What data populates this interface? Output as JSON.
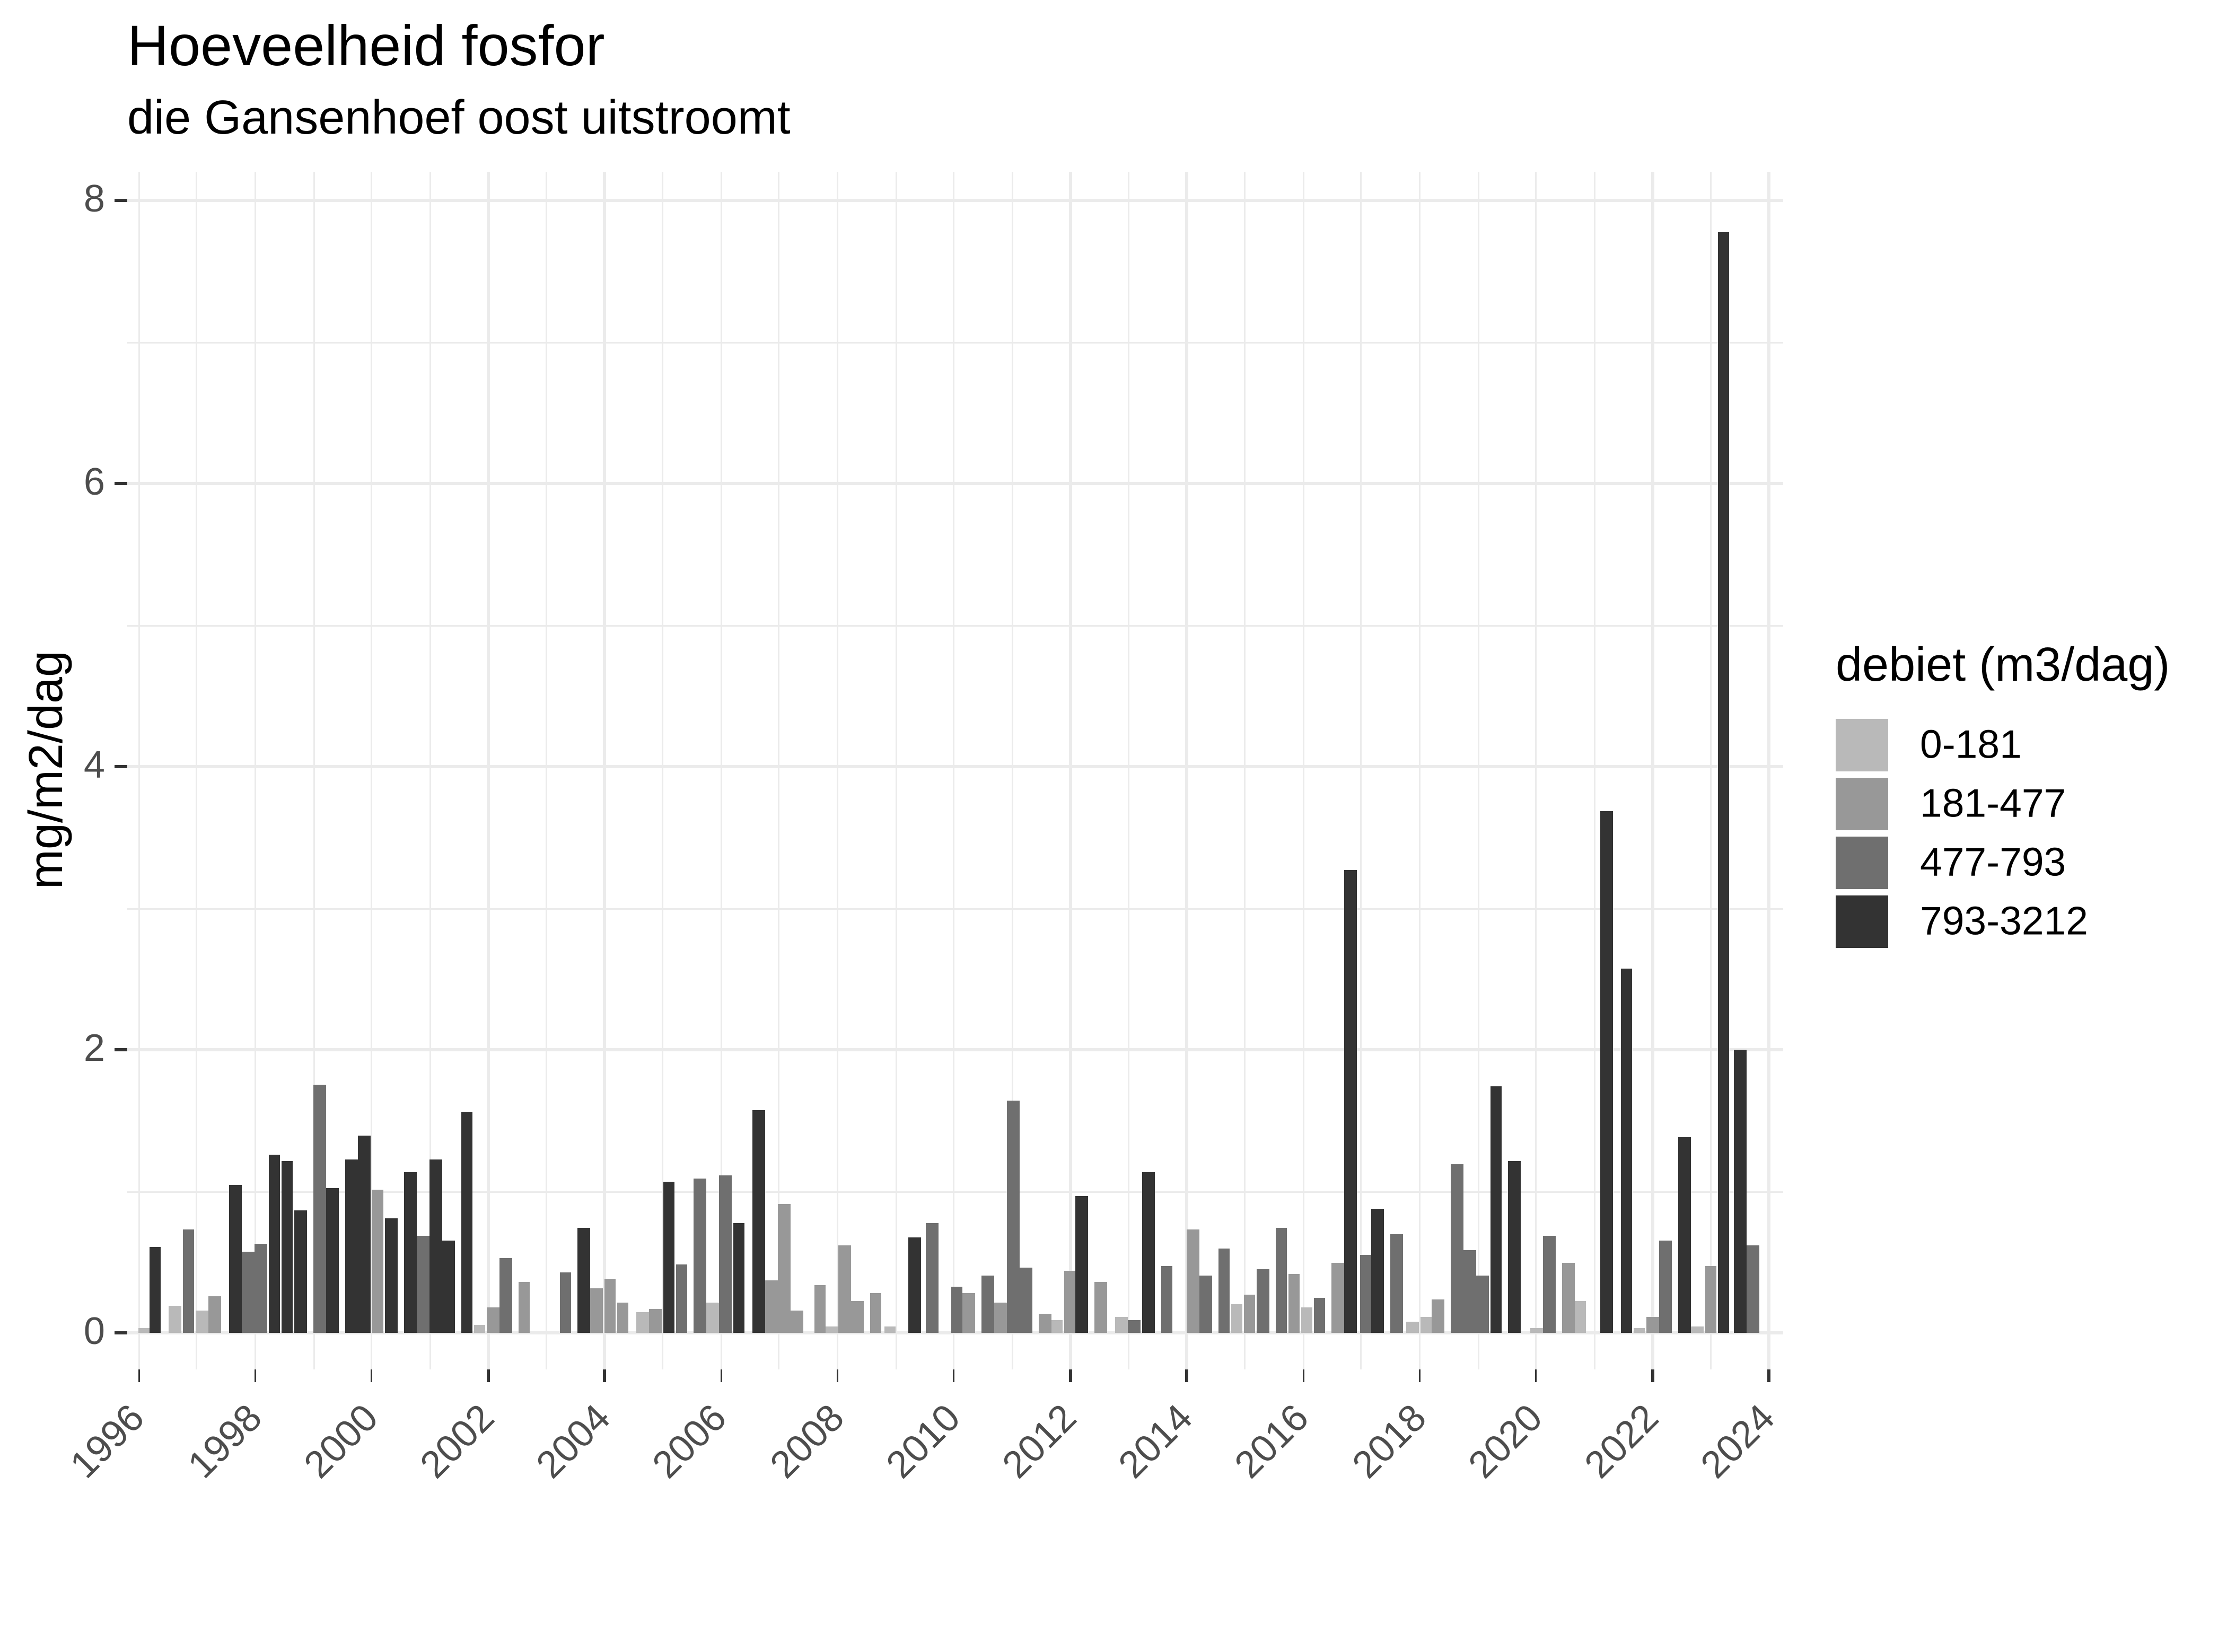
{
  "page": {
    "title": "Hoeveelheid fosfor",
    "subtitle": "die Gansenhoef oost uitstroomt"
  },
  "chart_data": {
    "type": "bar",
    "title": "Hoeveelheid fosfor",
    "subtitle": "die Gansenhoef oost uitstroomt",
    "xlabel": "",
    "ylabel": "mg/m2/dag",
    "ylim": [
      0,
      8.2
    ],
    "xlim": [
      1995.75,
      2024.25
    ],
    "grid": "on",
    "y_major_ticks": [
      0,
      2,
      4,
      6,
      8
    ],
    "y_minor_gridlines": [
      1,
      3,
      5,
      7
    ],
    "x_tick_years": [
      1996,
      1998,
      2000,
      2002,
      2004,
      2006,
      2008,
      2010,
      2012,
      2014,
      2016,
      2018,
      2020,
      2022,
      2024
    ],
    "x_major_gridlines": [
      1996,
      1998,
      2000,
      2002,
      2004,
      2006,
      2008,
      2010,
      2012,
      2014,
      2016,
      2018,
      2020,
      2022,
      2024
    ],
    "x_minor_gridlines": [
      1997,
      1999,
      2001,
      2003,
      2005,
      2007,
      2009,
      2011,
      2013,
      2015,
      2017,
      2019,
      2021,
      2023
    ],
    "legend": {
      "title": "debiet (m3/dag)",
      "position": "right",
      "items": [
        {
          "label": "0-181",
          "color": "#b9b9b9"
        },
        {
          "label": "181-477",
          "color": "#989898"
        },
        {
          "label": "477-793",
          "color": "#6f6f6f"
        },
        {
          "label": "793-3212",
          "color": "#333333"
        }
      ]
    },
    "bar_width_years": 0.21,
    "bars": [
      [
        1996.1,
        0.03,
        0
      ],
      [
        1996.28,
        0.61,
        3
      ],
      [
        1996.62,
        0.19,
        0
      ],
      [
        1996.85,
        0.73,
        2
      ],
      [
        1997.08,
        0.16,
        0
      ],
      [
        1997.3,
        0.26,
        1
      ],
      [
        1997.66,
        1.04,
        3
      ],
      [
        1997.88,
        0.57,
        2
      ],
      [
        1998.1,
        0.63,
        2
      ],
      [
        1998.33,
        1.26,
        3
      ],
      [
        1998.55,
        1.21,
        3
      ],
      [
        1998.77,
        0.87,
        3
      ],
      [
        1999.1,
        1.75,
        2
      ],
      [
        1999.33,
        1.02,
        3
      ],
      [
        1999.66,
        1.22,
        3
      ],
      [
        1999.88,
        1.39,
        3
      ],
      [
        2000.1,
        1.01,
        1
      ],
      [
        2000.33,
        0.81,
        3
      ],
      [
        2000.66,
        1.13,
        3
      ],
      [
        2000.88,
        0.69,
        2
      ],
      [
        2001.1,
        1.23,
        3
      ],
      [
        2001.32,
        0.65,
        3
      ],
      [
        2001.63,
        1.56,
        3
      ],
      [
        2001.85,
        0.06,
        0
      ],
      [
        2002.08,
        0.18,
        1
      ],
      [
        2002.3,
        0.53,
        2
      ],
      [
        2002.62,
        0.36,
        1
      ],
      [
        2003.33,
        0.43,
        2
      ],
      [
        2003.65,
        0.74,
        3
      ],
      [
        2003.87,
        0.31,
        1
      ],
      [
        2004.09,
        0.38,
        1
      ],
      [
        2004.31,
        0.21,
        1
      ],
      [
        2004.65,
        0.15,
        0
      ],
      [
        2004.88,
        0.17,
        1
      ],
      [
        2005.1,
        1.07,
        3
      ],
      [
        2005.32,
        0.48,
        2
      ],
      [
        2005.64,
        1.09,
        2
      ],
      [
        2005.86,
        0.21,
        0
      ],
      [
        2006.08,
        1.11,
        2
      ],
      [
        2006.31,
        0.77,
        3
      ],
      [
        2006.64,
        1.57,
        3
      ],
      [
        2006.86,
        0.37,
        1
      ],
      [
        2007.08,
        0.91,
        1
      ],
      [
        2007.3,
        0.16,
        1
      ],
      [
        2007.7,
        0.34,
        1
      ],
      [
        2007.9,
        0.05,
        0
      ],
      [
        2008.13,
        0.62,
        1
      ],
      [
        2008.35,
        0.23,
        1
      ],
      [
        2008.66,
        0.28,
        1
      ],
      [
        2008.9,
        0.04,
        0
      ],
      [
        2009.33,
        0.67,
        3
      ],
      [
        2009.63,
        0.77,
        2
      ],
      [
        2010.05,
        0.33,
        2
      ],
      [
        2010.26,
        0.28,
        1
      ],
      [
        2010.58,
        0.41,
        2
      ],
      [
        2010.8,
        0.21,
        1
      ],
      [
        2011.02,
        1.64,
        2
      ],
      [
        2011.24,
        0.46,
        2
      ],
      [
        2011.56,
        0.14,
        1
      ],
      [
        2011.77,
        0.09,
        0
      ],
      [
        2011.99,
        0.44,
        1
      ],
      [
        2012.2,
        0.97,
        3
      ],
      [
        2012.53,
        0.36,
        1
      ],
      [
        2012.88,
        0.11,
        0
      ],
      [
        2013.1,
        0.09,
        2
      ],
      [
        2013.34,
        1.14,
        3
      ],
      [
        2013.66,
        0.47,
        2
      ],
      [
        2014.11,
        0.73,
        1
      ],
      [
        2014.33,
        0.41,
        2
      ],
      [
        2014.64,
        0.6,
        2
      ],
      [
        2014.86,
        0.2,
        0
      ],
      [
        2015.08,
        0.27,
        1
      ],
      [
        2015.3,
        0.45,
        2
      ],
      [
        2015.62,
        0.74,
        2
      ],
      [
        2015.84,
        0.42,
        1
      ],
      [
        2016.06,
        0.18,
        0
      ],
      [
        2016.28,
        0.25,
        2
      ],
      [
        2016.6,
        0.49,
        1
      ],
      [
        2016.82,
        3.27,
        3
      ],
      [
        2017.07,
        0.55,
        2
      ],
      [
        2017.28,
        0.88,
        3
      ],
      [
        2017.61,
        0.7,
        2
      ],
      [
        2017.87,
        0.08,
        0
      ],
      [
        2018.12,
        0.11,
        0
      ],
      [
        2018.32,
        0.24,
        1
      ],
      [
        2018.64,
        1.19,
        2
      ],
      [
        2018.86,
        0.58,
        2
      ],
      [
        2019.08,
        0.41,
        2
      ],
      [
        2019.31,
        1.74,
        3
      ],
      [
        2019.63,
        1.21,
        3
      ],
      [
        2020.0,
        0.03,
        0
      ],
      [
        2020.22,
        0.69,
        2
      ],
      [
        2020.55,
        0.5,
        1
      ],
      [
        2020.76,
        0.23,
        0
      ],
      [
        2021.21,
        3.68,
        3
      ],
      [
        2021.55,
        2.57,
        3
      ],
      [
        2021.77,
        0.03,
        0
      ],
      [
        2022.0,
        0.11,
        1
      ],
      [
        2022.22,
        0.65,
        2
      ],
      [
        2022.55,
        1.38,
        3
      ],
      [
        2022.76,
        0.04,
        0
      ],
      [
        2023.0,
        0.47,
        1
      ],
      [
        2023.22,
        7.78,
        3
      ],
      [
        2023.5,
        2.0,
        3
      ],
      [
        2023.72,
        0.62,
        2
      ]
    ],
    "colors": {
      "background": "#ffffff",
      "gridline": "#ebebeb",
      "axis_text": "#4d4d4d",
      "tick_mark": "#333333",
      "title_text": "#000000"
    }
  }
}
